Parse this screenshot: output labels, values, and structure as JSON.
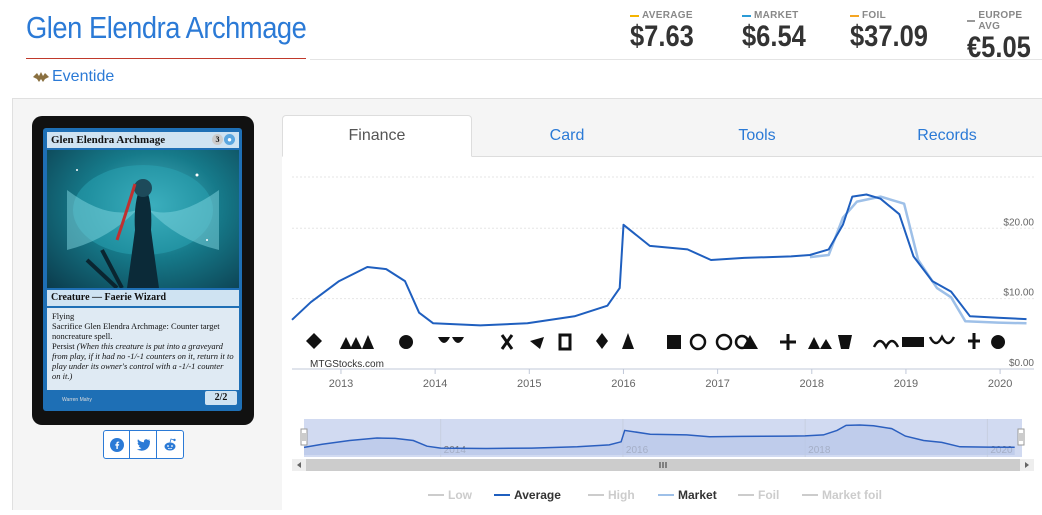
{
  "card": {
    "title": "Glen Elendra Archmage",
    "set_name": "Eventide",
    "image": {
      "name": "Glen Elendra Archmage",
      "mana_cost": "3",
      "type_line": "Creature — Faerie Wizard",
      "rules": [
        "Flying",
        "Sacrifice Glen Elendra Archmage: Counter target noncreature spell.",
        "Persist"
      ],
      "reminder": "(When this creature is put into a graveyard from play, if it had no -1/-1 counters on it, return it to play under its owner's control with a -1/-1 counter on it.)",
      "pt": "2/2",
      "artist": "Warren Mahy"
    }
  },
  "prices": [
    {
      "label": "AVERAGE",
      "value": "$7.63",
      "color": "#f5b400"
    },
    {
      "label": "MARKET",
      "value": "$6.54",
      "color": "#2b9bd6"
    },
    {
      "label": "FOIL",
      "value": "$37.09",
      "color": "#f5a623"
    },
    {
      "label": "EUROPE AVG",
      "value": "€5.05",
      "color": "#999999"
    }
  ],
  "tabs": [
    "Finance",
    "Card",
    "Tools",
    "Records"
  ],
  "active_tab": "Finance",
  "share": [
    "facebook-icon",
    "twitter-icon",
    "reddit-icon"
  ],
  "watermark": "MTGStocks.com",
  "chart_data": {
    "type": "line",
    "title": "",
    "xlabel": "",
    "ylabel": "",
    "yticks": [
      "$20.00",
      "$10.00",
      "$0.00"
    ],
    "ylim": [
      0,
      27
    ],
    "xticks": [
      2013,
      2014,
      2015,
      2016,
      2017,
      2018,
      2019,
      2020
    ],
    "navigator_xticks": [
      "2014",
      "2016",
      "2018",
      "2020"
    ],
    "x_unit": "year",
    "series": [
      {
        "name": "Average",
        "color": "#1f5fbf",
        "points": [
          [
            2012.5,
            6.0
          ],
          [
            2012.7,
            8.5
          ],
          [
            2013.0,
            11.5
          ],
          [
            2013.3,
            13.5
          ],
          [
            2013.5,
            13.2
          ],
          [
            2013.7,
            11.5
          ],
          [
            2013.85,
            7.0
          ],
          [
            2014.0,
            5.5
          ],
          [
            2014.5,
            5.2
          ],
          [
            2015.0,
            5.5
          ],
          [
            2015.5,
            6.5
          ],
          [
            2015.85,
            8.0
          ],
          [
            2015.98,
            10.5
          ],
          [
            2016.02,
            19.5
          ],
          [
            2016.3,
            16.5
          ],
          [
            2016.7,
            16.0
          ],
          [
            2016.95,
            14.5
          ],
          [
            2017.3,
            14.8
          ],
          [
            2017.8,
            15.0
          ],
          [
            2018.0,
            15.2
          ],
          [
            2018.2,
            16.0
          ],
          [
            2018.35,
            19.5
          ],
          [
            2018.45,
            23.5
          ],
          [
            2018.6,
            23.8
          ],
          [
            2018.75,
            23.2
          ],
          [
            2018.95,
            21.0
          ],
          [
            2019.1,
            15.0
          ],
          [
            2019.3,
            11.5
          ],
          [
            2019.5,
            10.0
          ],
          [
            2019.7,
            6.5
          ],
          [
            2020.0,
            6.3
          ],
          [
            2020.3,
            6.1
          ]
        ]
      },
      {
        "name": "Market",
        "color": "#9ec0e8",
        "points": [
          [
            2018.0,
            14.9
          ],
          [
            2018.2,
            15.2
          ],
          [
            2018.35,
            20.5
          ],
          [
            2018.5,
            22.8
          ],
          [
            2018.75,
            23.5
          ],
          [
            2019.0,
            22.5
          ],
          [
            2019.15,
            14.5
          ],
          [
            2019.35,
            10.5
          ],
          [
            2019.5,
            9.2
          ],
          [
            2019.65,
            5.8
          ],
          [
            2020.0,
            5.6
          ],
          [
            2020.3,
            5.5
          ]
        ]
      }
    ],
    "legend": [
      {
        "name": "Low",
        "color": "#cccccc",
        "active": false
      },
      {
        "name": "Average",
        "color": "#1f5fbf",
        "active": true
      },
      {
        "name": "High",
        "color": "#cccccc",
        "active": false
      },
      {
        "name": "Market",
        "color": "#9ec0e8",
        "active": true
      },
      {
        "name": "Foil",
        "color": "#cccccc",
        "active": false
      },
      {
        "name": "Market foil",
        "color": "#cccccc",
        "active": false
      }
    ],
    "legend_placement": "bottom",
    "grid": true
  }
}
